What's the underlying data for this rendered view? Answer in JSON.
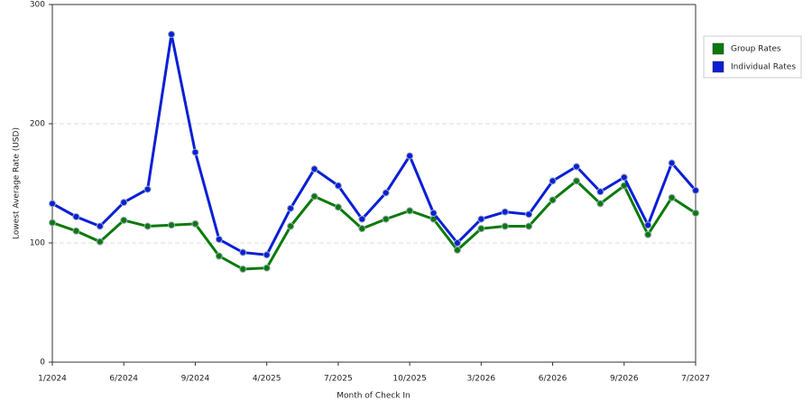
{
  "chart_data": {
    "type": "line",
    "y_label": "Lowest Average Rate (USD)",
    "x_label": "Month of Check In",
    "categories": [
      "1/2024",
      null,
      null,
      "6/2024",
      null,
      null,
      "9/2024",
      null,
      null,
      "4/2025",
      null,
      null,
      "7/2025",
      null,
      null,
      "10/2025",
      null,
      null,
      "3/2026",
      null,
      null,
      "6/2026",
      null,
      null,
      "9/2026",
      null,
      null,
      "7/2027"
    ],
    "series": [
      {
        "name": "Group Rates",
        "color": "#0a7a0a",
        "values": [
          117,
          110,
          101,
          119,
          114,
          115,
          116,
          89,
          78,
          79,
          114,
          139,
          130,
          112,
          120,
          127,
          120,
          94,
          112,
          114,
          114,
          136,
          152,
          133,
          148,
          107,
          138,
          125
        ]
      },
      {
        "name": "Individual Rates",
        "color": "#0a1fd6",
        "values": [
          133,
          122,
          114,
          134,
          145,
          275,
          176,
          103,
          92,
          90,
          129,
          162,
          148,
          120,
          142,
          173,
          125,
          100,
          120,
          126,
          124,
          152,
          164,
          143,
          155,
          115,
          167,
          144
        ]
      }
    ],
    "ylim": [
      0,
      300
    ],
    "yticks": [
      0,
      100,
      200,
      300
    ],
    "grid": true,
    "legend": "right"
  }
}
